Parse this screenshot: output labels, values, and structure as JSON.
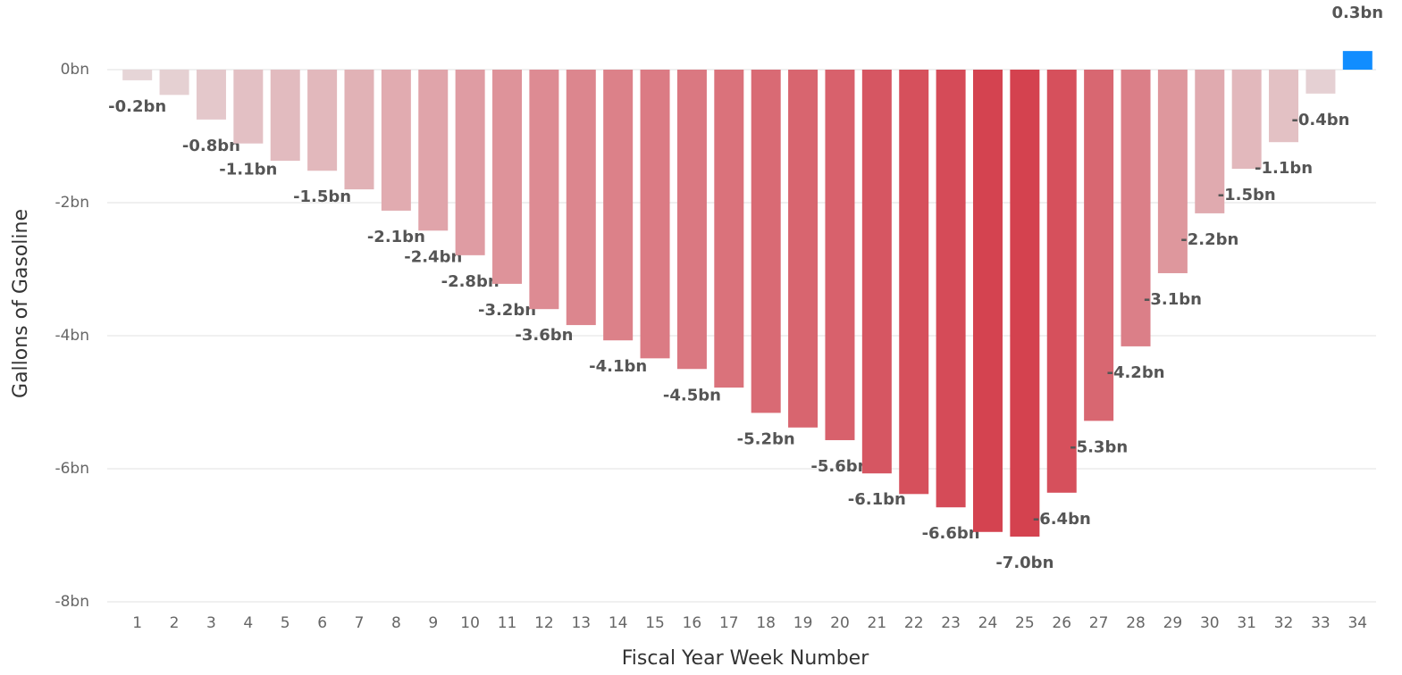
{
  "chart_data": {
    "type": "bar",
    "x_label": "Fiscal Year Week Number",
    "y_label": "Gallons of Gasoline",
    "categories": [
      "1",
      "2",
      "3",
      "4",
      "5",
      "6",
      "7",
      "8",
      "9",
      "10",
      "11",
      "12",
      "13",
      "14",
      "15",
      "16",
      "17",
      "18",
      "19",
      "20",
      "21",
      "22",
      "23",
      "24",
      "25",
      "26",
      "27",
      "28",
      "29",
      "30",
      "31",
      "32",
      "33",
      "34"
    ],
    "values": [
      -0.16,
      -0.38,
      -0.75,
      -1.11,
      -1.37,
      -1.52,
      -1.8,
      -2.12,
      -2.42,
      -2.79,
      -3.22,
      -3.6,
      -3.84,
      -4.07,
      -4.34,
      -4.5,
      -4.78,
      -5.16,
      -5.38,
      -5.57,
      -6.07,
      -6.38,
      -6.58,
      -6.95,
      -7.02,
      -6.36,
      -5.28,
      -4.16,
      -3.06,
      -2.16,
      -1.49,
      -1.09,
      -0.36,
      0.28
    ],
    "value_labels": [
      "-0.2bn",
      null,
      "-0.8bn",
      "-1.1bn",
      null,
      "-1.5bn",
      null,
      "-2.1bn",
      "-2.4bn",
      "-2.8bn",
      "-3.2bn",
      "-3.6bn",
      null,
      "-4.1bn",
      null,
      "-4.5bn",
      null,
      "-5.2bn",
      null,
      "-5.6bn",
      "-6.1bn",
      null,
      "-6.6bn",
      null,
      "-7.0bn",
      "-6.4bn",
      "-5.3bn",
      "-4.2bn",
      "-3.1bn",
      "-2.2bn",
      "-1.5bn",
      "-1.1bn",
      "-0.4bn",
      "0.3bn"
    ],
    "negative_color_light": "#e6d8da",
    "negative_color_dark": "#d4424f",
    "positive_color": "#118dff",
    "ylim": [
      -8,
      0.3
    ],
    "yticks": [
      {
        "value": 0,
        "label": "0bn"
      },
      {
        "value": -2,
        "label": "-2bn"
      },
      {
        "value": -4,
        "label": "-4bn"
      },
      {
        "value": -6,
        "label": "-6bn"
      },
      {
        "value": -8,
        "label": "-8bn"
      }
    ],
    "grid": true
  }
}
